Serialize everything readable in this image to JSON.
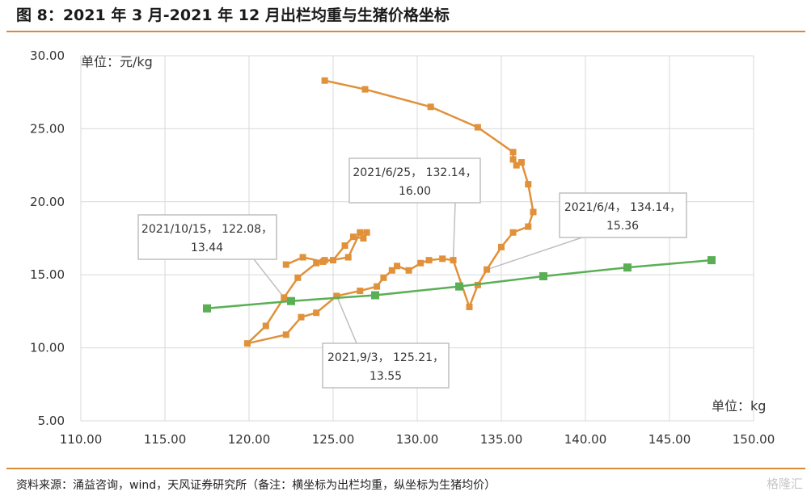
{
  "header": {
    "title": "图 8：2021 年 3 月-2021 年 12 月出栏均重与生猪价格坐标"
  },
  "footer": {
    "source": "资料来源：涌益咨询，wind，天风证券研究所（备注：横坐标为出栏均重，纵坐标为生猪均价）",
    "watermark": "格隆汇"
  },
  "chart_data": {
    "type": "scatter",
    "xlim": [
      110,
      150
    ],
    "ylim": [
      5,
      30
    ],
    "x_ticks": [
      "110.00",
      "115.00",
      "120.00",
      "125.00",
      "130.00",
      "135.00",
      "140.00",
      "145.00",
      "150.00"
    ],
    "y_ticks": [
      "5.00",
      "10.00",
      "15.00",
      "20.00",
      "25.00",
      "30.00"
    ],
    "ylabel": "单位：元/kg",
    "xlabel": "单位：kg",
    "grid": true,
    "colors": {
      "price_path": "#e0913a",
      "trend": "#5aaf55",
      "gridline": "#d9d9d9",
      "callout_border": "#bfbfbf"
    },
    "series": [
      {
        "style": "line-with-square-markers",
        "color": "#e0913a",
        "points": [
          [
            124.5,
            28.3
          ],
          [
            126.9,
            27.7
          ],
          [
            130.8,
            26.5
          ],
          [
            133.6,
            25.1
          ],
          [
            135.7,
            23.4
          ],
          [
            135.7,
            22.9
          ],
          [
            135.9,
            22.5
          ],
          [
            136.2,
            22.7
          ],
          [
            136.6,
            21.2
          ],
          [
            136.9,
            19.3
          ],
          [
            136.6,
            18.3
          ],
          [
            135.7,
            17.9
          ],
          [
            135.0,
            16.9
          ],
          [
            134.14,
            15.36
          ],
          [
            133.6,
            14.3
          ],
          [
            133.1,
            12.8
          ],
          [
            132.14,
            16.0
          ],
          [
            131.5,
            16.1
          ],
          [
            130.7,
            16.0
          ],
          [
            130.2,
            15.8
          ],
          [
            129.5,
            15.3
          ],
          [
            128.8,
            15.6
          ],
          [
            128.5,
            15.3
          ],
          [
            128.0,
            14.8
          ],
          [
            127.6,
            14.2
          ],
          [
            126.6,
            13.9
          ],
          [
            125.21,
            13.55
          ],
          [
            124.0,
            12.4
          ],
          [
            123.1,
            12.1
          ],
          [
            122.2,
            10.9
          ],
          [
            119.9,
            10.3
          ],
          [
            121.0,
            11.5
          ],
          [
            122.08,
            13.44
          ],
          [
            122.9,
            14.8
          ],
          [
            124.0,
            15.8
          ],
          [
            124.5,
            16.0
          ],
          [
            125.0,
            16.0
          ],
          [
            125.7,
            17.0
          ],
          [
            126.2,
            17.6
          ],
          [
            126.8,
            17.5
          ],
          [
            127.0,
            17.9
          ],
          [
            126.6,
            17.9
          ],
          [
            125.9,
            16.2
          ],
          [
            124.4,
            15.9
          ],
          [
            123.2,
            16.2
          ],
          [
            122.2,
            15.7
          ]
        ]
      },
      {
        "style": "line-with-square-markers",
        "color": "#5aaf55",
        "points": [
          [
            117.5,
            12.7
          ],
          [
            122.5,
            13.2
          ],
          [
            127.5,
            13.6
          ],
          [
            132.5,
            14.2
          ],
          [
            137.5,
            14.9
          ],
          [
            142.5,
            15.5
          ],
          [
            147.5,
            16.0
          ]
        ]
      }
    ],
    "annotations": [
      {
        "line1": "2021/6/25，  132.14，",
        "line2": "16.00",
        "x": 132.14,
        "y": 16.0
      },
      {
        "line1": "2021/6/4，  134.14，",
        "line2": "15.36",
        "x": 134.14,
        "y": 15.36
      },
      {
        "line1": "2021/10/15，  122.08，",
        "line2": "13.44",
        "x": 122.08,
        "y": 13.44
      },
      {
        "line1": "2021,9/3，  125.21，",
        "line2": "13.55",
        "x": 125.21,
        "y": 13.55
      }
    ]
  }
}
